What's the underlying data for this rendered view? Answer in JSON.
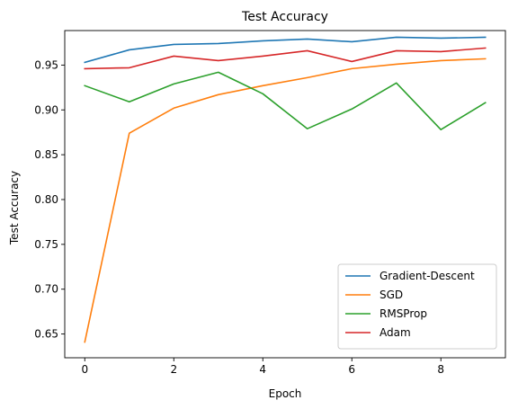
{
  "chart_data": {
    "type": "line",
    "title": "Test Accuracy",
    "xlabel": "Epoch",
    "ylabel": "Test Accuracy",
    "x": [
      0,
      1,
      2,
      3,
      4,
      5,
      6,
      7,
      8,
      9
    ],
    "xlim": [
      -0.45,
      9.45
    ],
    "ylim": [
      0.6235,
      0.9885
    ],
    "xticks": [
      0,
      2,
      4,
      6,
      8
    ],
    "yticks": [
      0.65,
      0.7,
      0.75,
      0.8,
      0.85,
      0.9,
      0.95
    ],
    "xtick_labels": [
      "0",
      "2",
      "4",
      "6",
      "8"
    ],
    "ytick_labels": [
      "0.65",
      "0.70",
      "0.75",
      "0.80",
      "0.85",
      "0.90",
      "0.95"
    ],
    "grid": false,
    "legend_position": "lower-right",
    "series": [
      {
        "name": "Gradient-Descent",
        "color": "#1f77b4",
        "values": [
          0.953,
          0.967,
          0.973,
          0.974,
          0.977,
          0.979,
          0.976,
          0.981,
          0.98,
          0.981
        ]
      },
      {
        "name": "SGD",
        "color": "#ff7f0e",
        "values": [
          0.641,
          0.874,
          0.902,
          0.917,
          0.927,
          0.936,
          0.946,
          0.951,
          0.955,
          0.957
        ]
      },
      {
        "name": "RMSProp",
        "color": "#2ca02c",
        "values": [
          0.927,
          0.909,
          0.929,
          0.942,
          0.918,
          0.879,
          0.901,
          0.93,
          0.878,
          0.908
        ]
      },
      {
        "name": "Adam",
        "color": "#d62728",
        "values": [
          0.946,
          0.947,
          0.96,
          0.955,
          0.96,
          0.966,
          0.954,
          0.966,
          0.965,
          0.969
        ]
      }
    ]
  }
}
